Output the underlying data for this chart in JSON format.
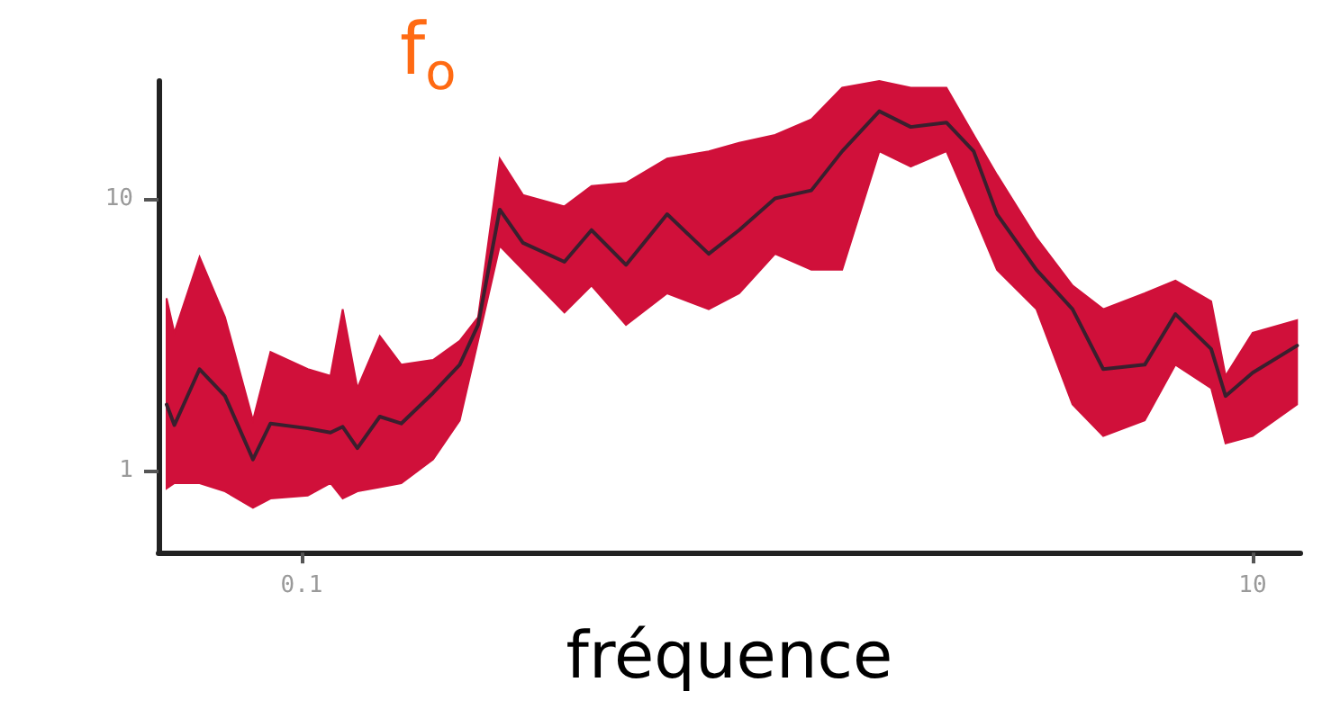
{
  "chart_data": {
    "type": "line",
    "xlabel": "fréquence",
    "annotations": [
      "f$_{o}$"
    ],
    "log": "xy",
    "grid": false,
    "marker": "none",
    "line_style": "solid",
    "xlim": [
      0.05,
      12.6
    ],
    "ylim": [
      0.5,
      27
    ],
    "xticks": [
      0.1,
      10
    ],
    "yticks": [
      1,
      10
    ],
    "x": [
      0.052,
      0.054,
      0.061,
      0.069,
      0.079,
      0.086,
      0.103,
      0.115,
      0.122,
      0.131,
      0.146,
      0.162,
      0.189,
      0.215,
      0.235,
      0.261,
      0.292,
      0.357,
      0.407,
      0.481,
      0.587,
      0.718,
      0.832,
      0.99,
      1.18,
      1.37,
      1.64,
      1.91,
      2.27,
      2.59,
      2.9,
      3.51,
      4.18,
      4.85,
      5.93,
      6.88,
      8.18,
      8.77,
      10,
      12.4
    ],
    "series": [
      {
        "color": "#3a1f2e",
        "values": [
          1.75,
          1.47,
          2.36,
          1.88,
          1.1,
          1.49,
          1.43,
          1.38,
          1.45,
          1.21,
          1.58,
          1.49,
          1.93,
          2.45,
          3.43,
          9.1,
          6.87,
          5.85,
          7.65,
          5.7,
          8.75,
          6.26,
          7.65,
          10,
          10.7,
          14.9,
          20.9,
          18.3,
          19,
          14.9,
          8.75,
          5.47,
          3.92,
          2.36,
          2.45,
          3.76,
          2.8,
          1.88,
          2.29,
          2.88
        ],
        "lower": [
          0.86,
          0.9,
          0.9,
          0.84,
          0.73,
          0.79,
          0.81,
          0.9,
          0.79,
          0.84,
          0.87,
          0.9,
          1.1,
          1.53,
          3,
          6.69,
          5.47,
          3.81,
          4.79,
          3.43,
          4.48,
          3.92,
          4.48,
          6.26,
          5.47,
          5.47,
          14.9,
          13.1,
          14.9,
          8.75,
          5.47,
          3.92,
          1.75,
          1.34,
          1.53,
          2.45,
          2.01,
          1.26,
          1.34,
          1.75
        ],
        "upper": [
          4.3,
          3.21,
          6.09,
          3.66,
          1.53,
          2.73,
          2.36,
          2.23,
          3.92,
          2.01,
          3.12,
          2.45,
          2.55,
          3,
          3.66,
          14,
          10.3,
          9.35,
          11.1,
          11.4,
          14,
          14.9,
          16,
          17.1,
          19.5,
          25.5,
          27,
          25.5,
          25.5,
          17.1,
          12.2,
          7.16,
          4.79,
          3.92,
          4.48,
          4.99,
          4.19,
          2.23,
          3.21,
          3.57
        ]
      }
    ]
  }
}
